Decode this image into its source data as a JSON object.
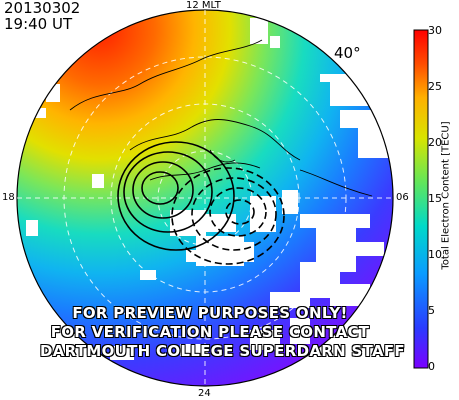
{
  "header": {
    "date": "20130302",
    "time": "19:40 UT"
  },
  "map": {
    "mlt_labels": {
      "top": "12 MLT",
      "bottom": "24",
      "left": "18",
      "right": "06"
    },
    "latitude_label": "40°",
    "projection": "polar stereographic, magnetic north pole centered",
    "low_lat_limit_deg": 40
  },
  "colorbar": {
    "title": "Total Electron Content [TECU]",
    "min": 0,
    "max": 30,
    "ticks": [
      "0",
      "5",
      "10",
      "15",
      "20",
      "25",
      "30"
    ],
    "colors": [
      "#7a00ff",
      "#2a3cff",
      "#0a9cff",
      "#00d9c8",
      "#62e65a",
      "#d8e400",
      "#ffb000",
      "#ff4d00",
      "#ff0000"
    ]
  },
  "watermark": {
    "lines": [
      "FOR PREVIEW PURPOSES ONLY!",
      "FOR VERIFICATION PLEASE CONTACT",
      "DARTMOUTH COLLEGE SUPERDARN STAFF"
    ]
  }
}
